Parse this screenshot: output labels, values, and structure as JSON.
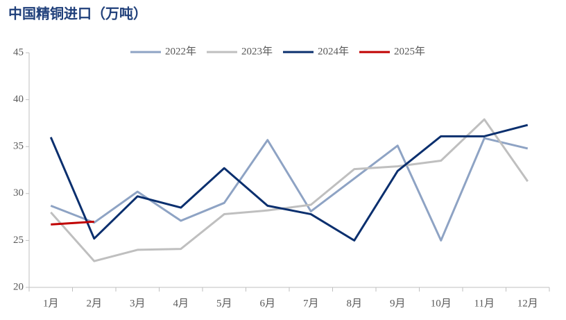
{
  "chart_data": {
    "type": "line",
    "title": "中国精铜进口（万吨）",
    "categories": [
      "1月",
      "2月",
      "3月",
      "4月",
      "5月",
      "6月",
      "7月",
      "8月",
      "9月",
      "10月",
      "11月",
      "12月"
    ],
    "series": [
      {
        "name": "2022年",
        "color": "#8ea3c4",
        "values": [
          28.7,
          26.9,
          30.2,
          27.1,
          29.0,
          35.7,
          28.1,
          31.6,
          35.1,
          25.0,
          35.9,
          34.8
        ]
      },
      {
        "name": "2023年",
        "color": "#bfbfbf",
        "values": [
          28.0,
          22.8,
          24.0,
          24.1,
          27.8,
          28.2,
          28.8,
          32.6,
          32.9,
          33.5,
          37.9,
          31.3
        ]
      },
      {
        "name": "2024年",
        "color": "#0a2f6e",
        "values": [
          36.0,
          25.2,
          29.7,
          28.5,
          32.7,
          28.7,
          27.8,
          25.0,
          32.4,
          36.1,
          36.1,
          37.3
        ]
      },
      {
        "name": "2025年",
        "color": "#c00000",
        "values": [
          26.7,
          27.0,
          null,
          null,
          null,
          null,
          null,
          null,
          null,
          null,
          null,
          null
        ]
      }
    ],
    "ylim": [
      20,
      45
    ],
    "yticks": [
      20,
      25,
      30,
      35,
      40,
      45
    ]
  }
}
